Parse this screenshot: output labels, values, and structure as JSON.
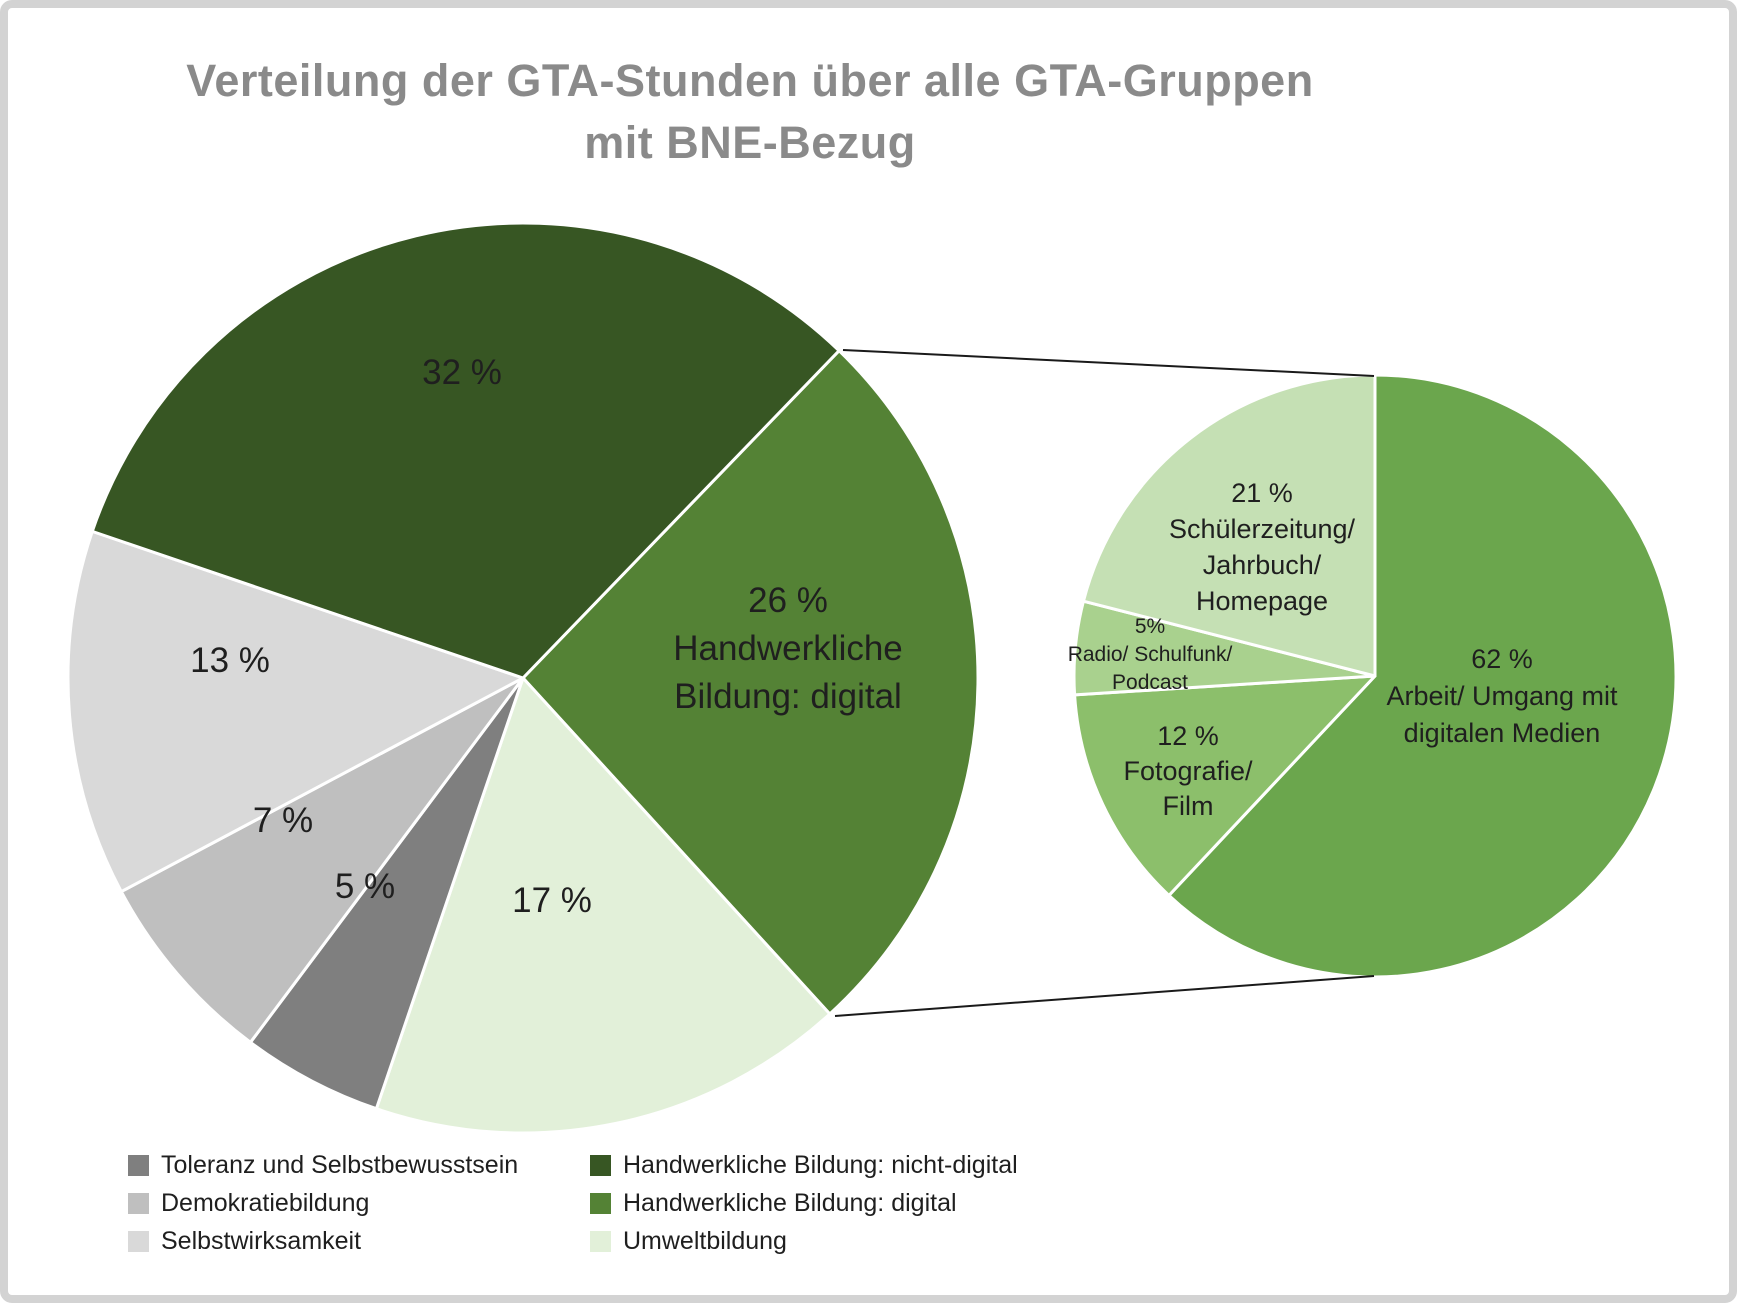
{
  "title": {
    "text": "Verteilung der GTA-Stunden über alle GTA-Gruppen mit BNE-Bezug",
    "line1": "Verteilung der GTA-Stunden über alle GTA-Gruppen",
    "line2": "mit BNE-Bezug"
  },
  "chart_data": [
    {
      "type": "pie",
      "name": "main-pie",
      "title": "Verteilung der GTA-Stunden über alle GTA-Gruppen mit BNE-Bezug",
      "units": "percent",
      "start_angle_deg": 44,
      "direction": "clockwise",
      "slices": [
        {
          "label": "Handwerkliche Bildung: digital",
          "value": 26,
          "color": "#548235",
          "display_lines": [
            "26 %",
            "Handwerkliche",
            "Bildung: digital"
          ]
        },
        {
          "label": "Umweltbildung",
          "value": 17,
          "color": "#E2F0D9",
          "display_lines": [
            "17 %"
          ]
        },
        {
          "label": "Toleranz und Selbstbewusstsein",
          "value": 5,
          "color": "#7F7F7F",
          "display_lines": [
            "5 %"
          ]
        },
        {
          "label": "Demokratiebildung",
          "value": 7,
          "color": "#BFBFBF",
          "display_lines": [
            "7 %"
          ]
        },
        {
          "label": "Selbstwirksamkeit",
          "value": 13,
          "color": "#D9D9D9",
          "display_lines": [
            "13 %"
          ]
        },
        {
          "label": "Handwerkliche Bildung: nicht-digital",
          "value": 32,
          "color": "#375623",
          "display_lines": [
            "32 %"
          ]
        }
      ]
    },
    {
      "type": "pie",
      "name": "breakout-pie-handwerkliche-bildung-digital",
      "title": "Aufschlüsselung: Handwerkliche Bildung: digital",
      "units": "percent",
      "start_angle_deg": 0,
      "direction": "clockwise",
      "slices": [
        {
          "label": "Arbeit/ Umgang mit digitalen Medien",
          "value": 62,
          "color": "#6BA64D",
          "display_lines": [
            "62 %",
            "Arbeit/ Umgang mit",
            "digitalen Medien"
          ]
        },
        {
          "label": "Fotografie/ Film",
          "value": 12,
          "color": "#8CBF6B",
          "display_lines": [
            "12 %",
            "Fotografie/",
            "Film"
          ]
        },
        {
          "label": "Radio/ Schulfunk/ Podcast",
          "value": 5,
          "color": "#A9D18E",
          "display_lines": [
            "5%",
            "Radio/ Schulfunk/",
            "Podcast"
          ]
        },
        {
          "label": "Schülerzeitung/ Jahrbuch/ Homepage",
          "value": 21,
          "color": "#C5E0B4",
          "display_lines": [
            "21 %",
            "Schülerzeitung/",
            "Jahrbuch/",
            "Homepage"
          ]
        }
      ]
    }
  ],
  "legend": {
    "items": [
      {
        "label": "Toleranz und Selbstbewusstsein",
        "color": "#7F7F7F"
      },
      {
        "label": "Demokratiebildung",
        "color": "#BFBFBF"
      },
      {
        "label": "Selbstwirksamkeit",
        "color": "#D9D9D9"
      },
      {
        "label": "Handwerkliche Bildung: nicht-digital",
        "color": "#375623"
      },
      {
        "label": "Handwerkliche Bildung: digital",
        "color": "#548235"
      },
      {
        "label": "Umweltbildung",
        "color": "#E2F0D9"
      }
    ]
  }
}
